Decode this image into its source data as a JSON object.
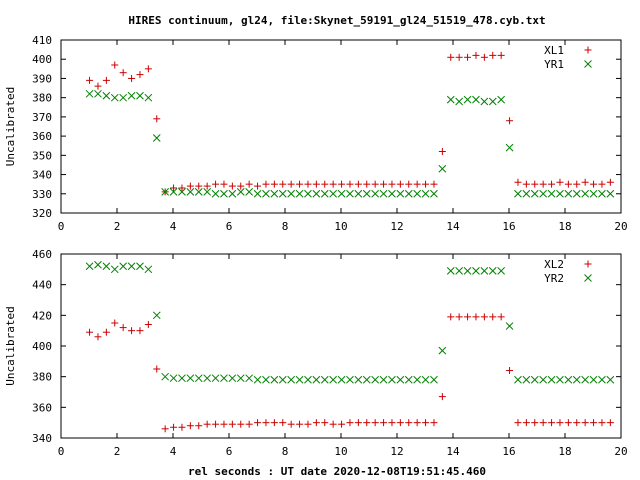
{
  "title": "HIRES continuum, gl24, file:Skynet_59191_gl24_51519_478.cyb.txt",
  "colors": {
    "series1": "#cc0000",
    "series2": "#008000",
    "axes": "#000000"
  },
  "chart_data": [
    {
      "type": "scatter",
      "xlabel": "",
      "ylabel": "Uncalibrated",
      "xlim": [
        0,
        20
      ],
      "ylim": [
        320,
        410
      ],
      "xticks": [
        0,
        2,
        4,
        6,
        8,
        10,
        12,
        14,
        16,
        18,
        20
      ],
      "yticks": [
        320,
        330,
        340,
        350,
        360,
        370,
        380,
        390,
        400,
        410
      ],
      "legend_position": "top-right",
      "grid": false,
      "series": [
        {
          "name": "XL1",
          "marker": "plus",
          "color": "#cc0000",
          "x": [
            1.02,
            1.32,
            1.62,
            1.92,
            2.22,
            2.52,
            2.82,
            3.12,
            3.42,
            3.72,
            4.02,
            4.32,
            4.62,
            4.92,
            5.22,
            5.52,
            5.82,
            6.12,
            6.42,
            6.72,
            7.02,
            7.32,
            7.62,
            7.92,
            8.22,
            8.52,
            8.82,
            9.12,
            9.42,
            9.72,
            10.02,
            10.32,
            10.62,
            10.92,
            11.22,
            11.52,
            11.82,
            12.12,
            12.42,
            12.72,
            13.02,
            13.32,
            13.62,
            13.92,
            14.22,
            14.52,
            14.82,
            15.12,
            15.42,
            15.72,
            16.02,
            16.32,
            16.62,
            16.92,
            17.22,
            17.52,
            17.82,
            18.12,
            18.42,
            18.72,
            19.02,
            19.32,
            19.62
          ],
          "y": [
            389,
            386,
            389,
            397,
            393,
            390,
            392,
            395,
            369,
            331,
            333,
            333,
            334,
            334,
            334,
            335,
            335,
            334,
            334,
            335,
            334,
            335,
            335,
            335,
            335,
            335,
            335,
            335,
            335,
            335,
            335,
            335,
            335,
            335,
            335,
            335,
            335,
            335,
            335,
            335,
            335,
            335,
            352,
            401,
            401,
            401,
            402,
            401,
            402,
            402,
            368,
            336,
            335,
            335,
            335,
            335,
            336,
            335,
            335,
            336,
            335,
            335,
            336
          ]
        },
        {
          "name": "YR1",
          "marker": "cross",
          "color": "#008000",
          "x": [
            1.02,
            1.32,
            1.62,
            1.92,
            2.22,
            2.52,
            2.82,
            3.12,
            3.42,
            3.72,
            4.02,
            4.32,
            4.62,
            4.92,
            5.22,
            5.52,
            5.82,
            6.12,
            6.42,
            6.72,
            7.02,
            7.32,
            7.62,
            7.92,
            8.22,
            8.52,
            8.82,
            9.12,
            9.42,
            9.72,
            10.02,
            10.32,
            10.62,
            10.92,
            11.22,
            11.52,
            11.82,
            12.12,
            12.42,
            12.72,
            13.02,
            13.32,
            13.62,
            13.92,
            14.22,
            14.52,
            14.82,
            15.12,
            15.42,
            15.72,
            16.02,
            16.32,
            16.62,
            16.92,
            17.22,
            17.52,
            17.82,
            18.12,
            18.42,
            18.72,
            19.02,
            19.32,
            19.62
          ],
          "y": [
            382,
            382,
            381,
            380,
            380,
            381,
            381,
            380,
            359,
            331,
            331,
            331,
            331,
            331,
            331,
            330,
            330,
            330,
            331,
            331,
            330,
            330,
            330,
            330,
            330,
            330,
            330,
            330,
            330,
            330,
            330,
            330,
            330,
            330,
            330,
            330,
            330,
            330,
            330,
            330,
            330,
            330,
            343,
            379,
            378,
            379,
            379,
            378,
            378,
            379,
            354,
            330,
            330,
            330,
            330,
            330,
            330,
            330,
            330,
            330,
            330,
            330,
            330
          ]
        }
      ]
    },
    {
      "type": "scatter",
      "xlabel": "rel seconds : UT date 2020-12-08T19:51:45.460",
      "ylabel": "Uncalibrated",
      "xlim": [
        0,
        20
      ],
      "ylim": [
        340,
        460
      ],
      "xticks": [
        0,
        2,
        4,
        6,
        8,
        10,
        12,
        14,
        16,
        18,
        20
      ],
      "yticks": [
        340,
        360,
        380,
        400,
        420,
        440,
        460
      ],
      "legend_position": "top-right",
      "grid": false,
      "series": [
        {
          "name": "XL2",
          "marker": "plus",
          "color": "#cc0000",
          "x": [
            1.02,
            1.32,
            1.62,
            1.92,
            2.22,
            2.52,
            2.82,
            3.12,
            3.42,
            3.72,
            4.02,
            4.32,
            4.62,
            4.92,
            5.22,
            5.52,
            5.82,
            6.12,
            6.42,
            6.72,
            7.02,
            7.32,
            7.62,
            7.92,
            8.22,
            8.52,
            8.82,
            9.12,
            9.42,
            9.72,
            10.02,
            10.32,
            10.62,
            10.92,
            11.22,
            11.52,
            11.82,
            12.12,
            12.42,
            12.72,
            13.02,
            13.32,
            13.62,
            13.92,
            14.22,
            14.52,
            14.82,
            15.12,
            15.42,
            15.72,
            16.02,
            16.32,
            16.62,
            16.92,
            17.22,
            17.52,
            17.82,
            18.12,
            18.42,
            18.72,
            19.02,
            19.32,
            19.62
          ],
          "y": [
            409,
            406,
            409,
            415,
            412,
            410,
            410,
            414,
            385,
            346,
            347,
            347,
            348,
            348,
            349,
            349,
            349,
            349,
            349,
            349,
            350,
            350,
            350,
            350,
            349,
            349,
            349,
            350,
            350,
            349,
            349,
            350,
            350,
            350,
            350,
            350,
            350,
            350,
            350,
            350,
            350,
            350,
            367,
            419,
            419,
            419,
            419,
            419,
            419,
            419,
            384,
            350,
            350,
            350,
            350,
            350,
            350,
            350,
            350,
            350,
            350,
            350,
            350
          ]
        },
        {
          "name": "YR2",
          "marker": "cross",
          "color": "#008000",
          "x": [
            1.02,
            1.32,
            1.62,
            1.92,
            2.22,
            2.52,
            2.82,
            3.12,
            3.42,
            3.72,
            4.02,
            4.32,
            4.62,
            4.92,
            5.22,
            5.52,
            5.82,
            6.12,
            6.42,
            6.72,
            7.02,
            7.32,
            7.62,
            7.92,
            8.22,
            8.52,
            8.82,
            9.12,
            9.42,
            9.72,
            10.02,
            10.32,
            10.62,
            10.92,
            11.22,
            11.52,
            11.82,
            12.12,
            12.42,
            12.72,
            13.02,
            13.32,
            13.62,
            13.92,
            14.22,
            14.52,
            14.82,
            15.12,
            15.42,
            15.72,
            16.02,
            16.32,
            16.62,
            16.92,
            17.22,
            17.52,
            17.82,
            18.12,
            18.42,
            18.72,
            19.02,
            19.32,
            19.62
          ],
          "y": [
            452,
            453,
            452,
            450,
            452,
            452,
            452,
            450,
            420,
            380,
            379,
            379,
            379,
            379,
            379,
            379,
            379,
            379,
            379,
            379,
            378,
            378,
            378,
            378,
            378,
            378,
            378,
            378,
            378,
            378,
            378,
            378,
            378,
            378,
            378,
            378,
            378,
            378,
            378,
            378,
            378,
            378,
            397,
            449,
            449,
            449,
            449,
            449,
            449,
            449,
            413,
            378,
            378,
            378,
            378,
            378,
            378,
            378,
            378,
            378,
            378,
            378,
            378
          ]
        }
      ]
    }
  ]
}
